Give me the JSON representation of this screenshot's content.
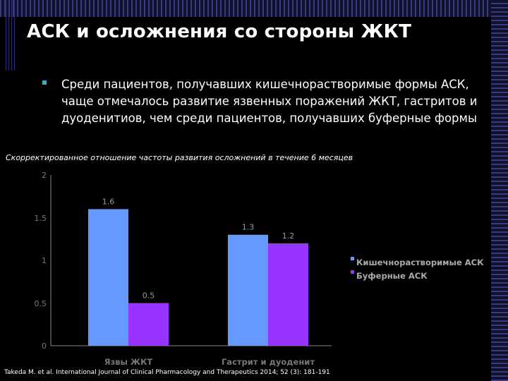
{
  "slide": {
    "title": "АСК и осложнения со стороны ЖКТ",
    "bullet": "Среди пациентов, получавших кишечнорастворимые формы АСК, чаще отмечалось развитие язвенных поражений ЖКТ, гастритов и дуоденитиов, чем среди пациентов, получавших буферные формы",
    "source": "Takeda M. et al. International Journal of Clinical Pharmacology and Therapeutics 2014; 52 (3): 181-191"
  },
  "chart_data": {
    "type": "bar",
    "title": "Скорректированное отношение частоты развития осложнений в течение 6 месяцев",
    "categories": [
      "Язвы ЖКТ",
      "Гастрит и дуоденит"
    ],
    "series": [
      {
        "name": "Кишечнорастворимые АСК",
        "values": [
          1.6,
          1.3
        ],
        "color": "#6699ff"
      },
      {
        "name": "Буферные АСК",
        "values": [
          0.5,
          1.2
        ],
        "color": "#9933ff"
      }
    ],
    "value_labels": [
      [
        "1.6",
        "1.3"
      ],
      [
        "0.5",
        "1.2"
      ]
    ],
    "yticks": [
      "0",
      "0.5",
      "1",
      "1.5",
      "2"
    ],
    "ylim": [
      0,
      2
    ],
    "grid": false,
    "legend_position": "right"
  }
}
